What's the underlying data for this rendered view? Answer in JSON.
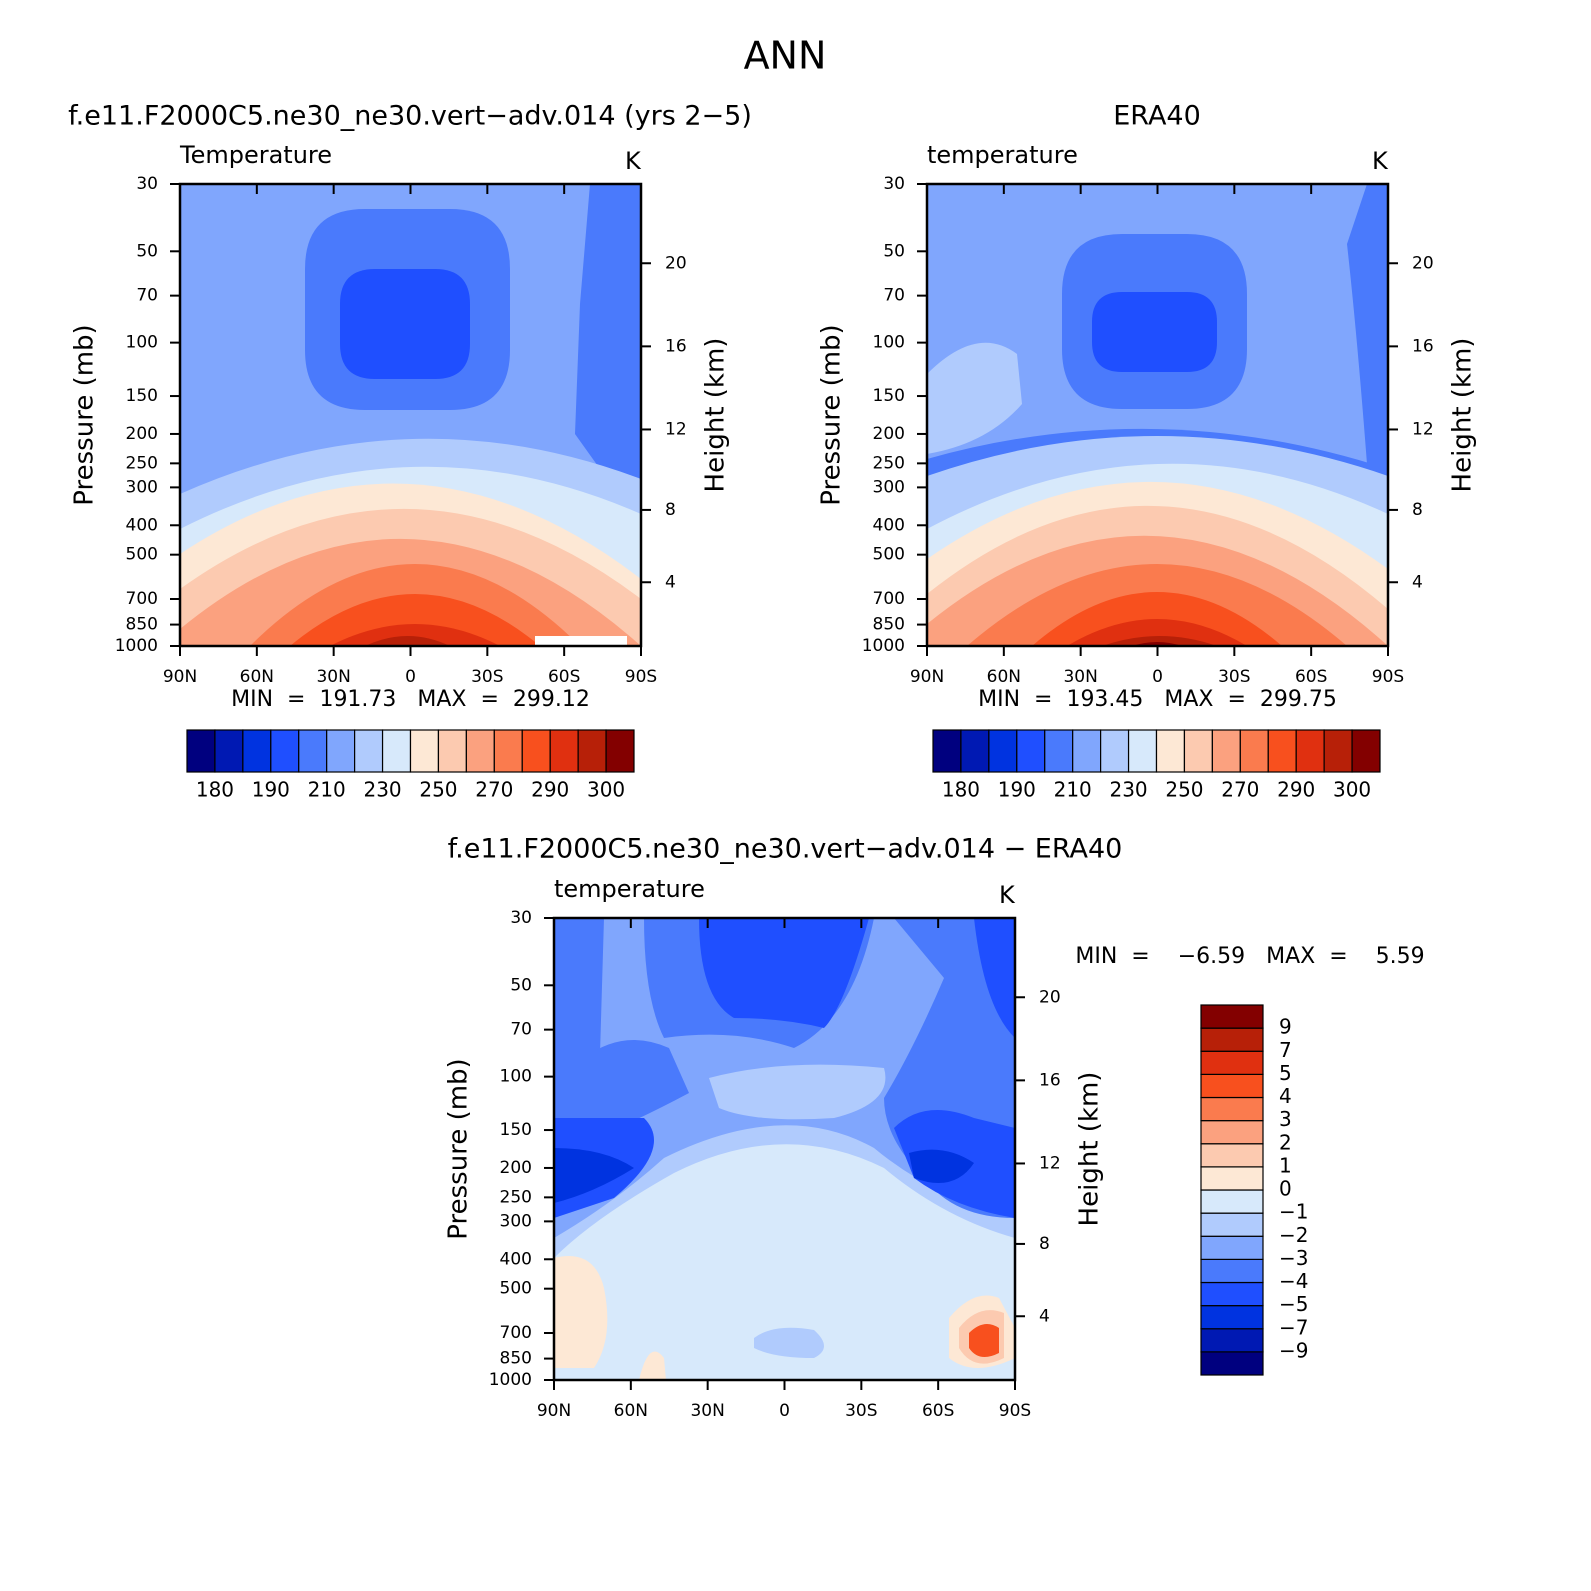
{
  "title": "ANN",
  "chart_data": [
    {
      "type": "contour",
      "title": "f.e11.F2000C5.ne30_ne30.vert−adv.014 (yrs 2−5)",
      "subtitle": "Temperature",
      "units": "K",
      "ylabel": "Pressure (mb)",
      "y2label": "Height (km)",
      "ylog": true,
      "xlim": [
        90,
        -90
      ],
      "xticks": [
        {
          "value": 90,
          "label": "90N"
        },
        {
          "value": 60,
          "label": "60N"
        },
        {
          "value": 30,
          "label": "30N"
        },
        0,
        {
          "value": -30,
          "label": "30S"
        },
        {
          "value": -60,
          "label": "60S"
        },
        {
          "value": -90,
          "label": "90S"
        }
      ],
      "ylim": [
        1000,
        30
      ],
      "yticks": [
        30,
        50,
        70,
        100,
        150,
        200,
        250,
        300,
        400,
        500,
        700,
        850,
        1000
      ],
      "y2ticks": [
        4,
        8,
        12,
        16,
        20
      ],
      "stats": "MIN  =  191.73   MAX  =  299.12",
      "colorbar": {
        "orientation": "horizontal",
        "labels": [
          180,
          190,
          210,
          230,
          250,
          270,
          290,
          300
        ],
        "colors": [
          "#00007f",
          "#0019b3",
          "#0033e0",
          "#1f4fff",
          "#4a7afc",
          "#80a6fd",
          "#b0cbfd",
          "#d7e9fb",
          "#fde8d5",
          "#fccab0",
          "#fba17f",
          "#fa7b4e",
          "#f8501e",
          "#e03010",
          "#b72008",
          "#830000"
        ]
      }
    },
    {
      "type": "contour",
      "title": "ERA40",
      "subtitle": "temperature",
      "units": "K",
      "ylabel": "Pressure (mb)",
      "y2label": "Height (km)",
      "ylog": true,
      "xlim": [
        90,
        -90
      ],
      "xticks": [
        {
          "value": 90,
          "label": "90N"
        },
        {
          "value": 60,
          "label": "60N"
        },
        {
          "value": 30,
          "label": "30N"
        },
        0,
        {
          "value": -30,
          "label": "30S"
        },
        {
          "value": -60,
          "label": "60S"
        },
        {
          "value": -90,
          "label": "90S"
        }
      ],
      "ylim": [
        1000,
        30
      ],
      "yticks": [
        30,
        50,
        70,
        100,
        150,
        200,
        250,
        300,
        400,
        500,
        700,
        850,
        1000
      ],
      "y2ticks": [
        4,
        8,
        12,
        16,
        20
      ],
      "stats": "MIN  =  193.45   MAX  =  299.75",
      "colorbar": {
        "orientation": "horizontal",
        "labels": [
          180,
          190,
          210,
          230,
          250,
          270,
          290,
          300
        ],
        "colors": [
          "#00007f",
          "#0019b3",
          "#0033e0",
          "#1f4fff",
          "#4a7afc",
          "#80a6fd",
          "#b0cbfd",
          "#d7e9fb",
          "#fde8d5",
          "#fccab0",
          "#fba17f",
          "#fa7b4e",
          "#f8501e",
          "#e03010",
          "#b72008",
          "#830000"
        ]
      }
    },
    {
      "type": "contour",
      "title": "f.e11.F2000C5.ne30_ne30.vert−adv.014 − ERA40",
      "subtitle": "temperature",
      "units": "K",
      "ylabel": "Pressure (mb)",
      "y2label": "Height (km)",
      "ylog": true,
      "xlim": [
        90,
        -90
      ],
      "xticks": [
        {
          "value": 90,
          "label": "90N"
        },
        {
          "value": 60,
          "label": "60N"
        },
        {
          "value": 30,
          "label": "30N"
        },
        0,
        {
          "value": -30,
          "label": "30S"
        },
        {
          "value": -60,
          "label": "60S"
        },
        {
          "value": -90,
          "label": "90S"
        }
      ],
      "ylim": [
        1000,
        30
      ],
      "yticks": [
        30,
        50,
        70,
        100,
        150,
        200,
        250,
        300,
        400,
        500,
        700,
        850,
        1000
      ],
      "y2ticks": [
        4,
        8,
        12,
        16,
        20
      ],
      "stats": "MIN  =    −6.59   MAX  =    5.59",
      "colorbar": {
        "orientation": "vertical",
        "labels": [
          {
            "value": -9,
            "label": "−9"
          },
          {
            "value": -7,
            "label": "−7"
          },
          {
            "value": -5,
            "label": "−5"
          },
          {
            "value": -4,
            "label": "−4"
          },
          {
            "value": -3,
            "label": "−3"
          },
          {
            "value": -2,
            "label": "−2"
          },
          {
            "value": -1,
            "label": "−1"
          },
          0,
          1,
          2,
          3,
          4,
          5,
          7,
          9
        ],
        "colors": [
          "#00007f",
          "#0019b3",
          "#0033e0",
          "#1f4fff",
          "#4a7afc",
          "#80a6fd",
          "#b0cbfd",
          "#d7e9fb",
          "#fde8d5",
          "#fccab0",
          "#fba17f",
          "#fa7b4e",
          "#f8501e",
          "#e03010",
          "#b72008",
          "#830000"
        ]
      }
    }
  ]
}
